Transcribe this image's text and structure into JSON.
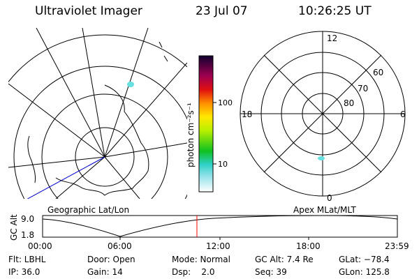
{
  "header": {
    "instrument": "Ultraviolet Imager",
    "date": "23 Jul 07",
    "time": "10:26:25 UT"
  },
  "geo_panel": {
    "label": "Geographic Lat/Lon"
  },
  "mag_panel": {
    "label": "Apex MLat/MLT",
    "mlt_labels": {
      "top": "12",
      "left": "18",
      "right": "6",
      "bottom": "0"
    },
    "lat_labels": [
      "60",
      "70",
      "80"
    ]
  },
  "colorbar": {
    "unit_label": "photon cm⁻²s⁻¹",
    "ticks": [
      "100",
      "10"
    ]
  },
  "altitude_plot": {
    "ylabel": "GC Alt",
    "y_ticks": [
      "9.0",
      "1.8"
    ],
    "x_ticks": [
      "00:00",
      "06:00",
      "12:00",
      "18:00",
      "23:59"
    ],
    "marker_hour": 10.44
  },
  "status": {
    "filter": "Flt: LBHL",
    "ip": "IP: 36.0",
    "door": "Door: Open",
    "gain": "Gain: 14",
    "mode": "Mode: Normal",
    "dsp": "Dsp:    2.0",
    "gc_alt": "GC Alt: 7.4 Re",
    "seq": "Seq: 39",
    "glat": "GLat: −78.4",
    "glon": "GLon: 125.8"
  },
  "colors": {
    "alt_marker": "#ff0000",
    "track_line": "#0000cc",
    "aurora_spot": "#66e0e0"
  }
}
